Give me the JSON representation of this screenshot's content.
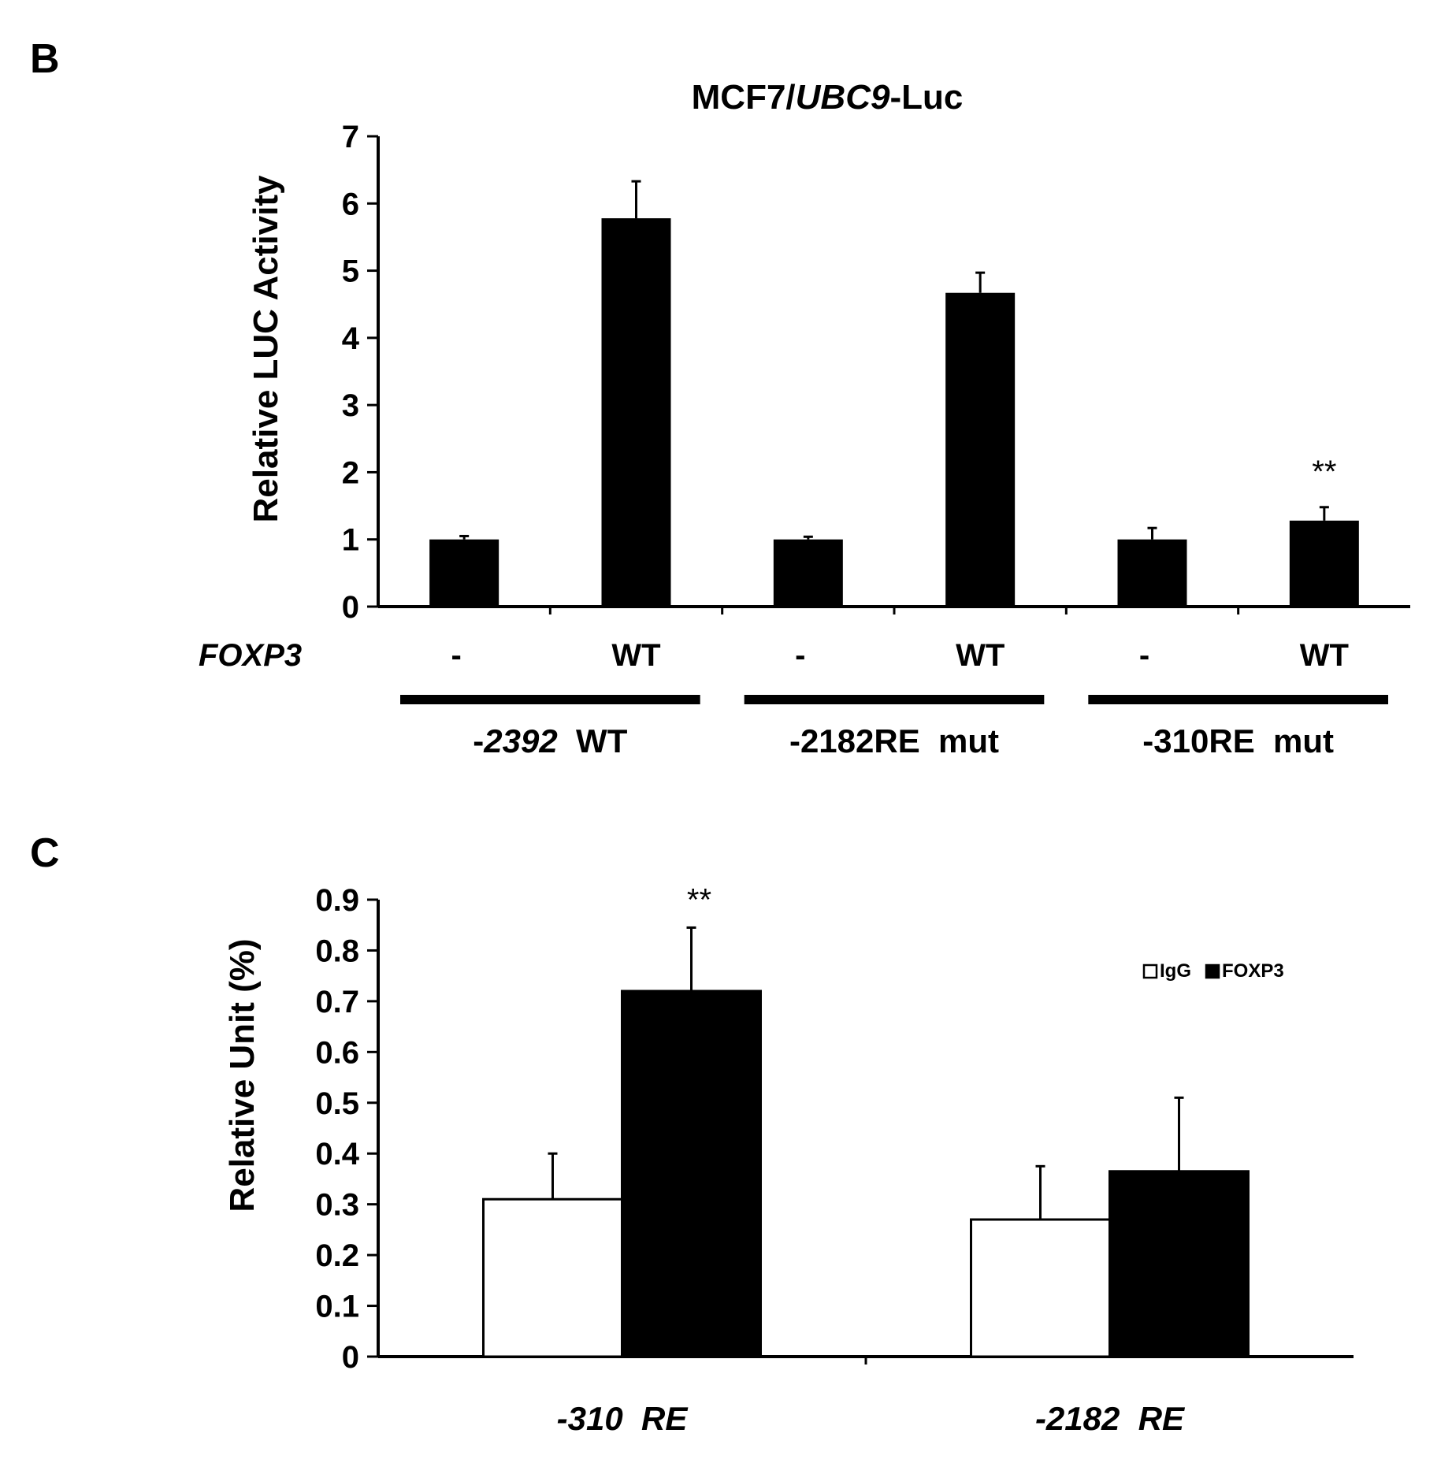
{
  "chart_data": [
    {
      "panel_label": "B",
      "type": "bar",
      "title_parts": [
        {
          "text": "MCF7/",
          "italic": false
        },
        {
          "text": "UBC9",
          "italic": true
        },
        {
          "text": "-Luc",
          "italic": false
        }
      ],
      "ylabel": "Relative LUC Activity",
      "ylim": [
        0,
        7
      ],
      "yticks": [
        "0",
        "1",
        "2",
        "3",
        "4",
        "5",
        "6",
        "7"
      ],
      "row_label": "FOXP3",
      "categories": [
        "-",
        "WT",
        "-",
        "WT",
        "-",
        "WT"
      ],
      "values": [
        1.0,
        5.78,
        1.0,
        4.67,
        1.0,
        1.28
      ],
      "errors": [
        0.05,
        0.55,
        0.04,
        0.3,
        0.17,
        0.2
      ],
      "annotations": [
        "",
        "",
        "",
        "",
        "",
        "**"
      ],
      "groups": [
        {
          "parts": [
            {
              "text": "-",
              "italic": false
            },
            {
              "text": "2392",
              "italic": true
            },
            {
              "text": "  WT",
              "italic": false
            }
          ]
        },
        {
          "parts": [
            {
              "text": "-2182RE  mut",
              "italic": false
            }
          ]
        },
        {
          "parts": [
            {
              "text": "-310RE  mut",
              "italic": false
            }
          ]
        }
      ],
      "bar_color": "#000000",
      "grid": false
    },
    {
      "panel_label": "C",
      "type": "bar",
      "ylabel": "Relative Unit (%)",
      "ylim": [
        0,
        0.9
      ],
      "yticks": [
        "0",
        "0.1",
        "0.2",
        "0.3",
        "0.4",
        "0.5",
        "0.6",
        "0.7",
        "0.8",
        "0.9"
      ],
      "categories": [
        "-310  RE",
        "-2182  RE"
      ],
      "series": [
        {
          "name": "IgG",
          "values": [
            0.31,
            0.27
          ],
          "errors": [
            0.09,
            0.105
          ],
          "color": "#ffffff"
        },
        {
          "name": "FOXP3",
          "values": [
            0.72,
            0.365
          ],
          "errors": [
            0.125,
            0.145
          ],
          "color": "#000000"
        }
      ],
      "annotations": [
        {
          "category": 0,
          "series": 1,
          "text": "**"
        }
      ],
      "legend_position": "top-right",
      "grid": false
    }
  ]
}
